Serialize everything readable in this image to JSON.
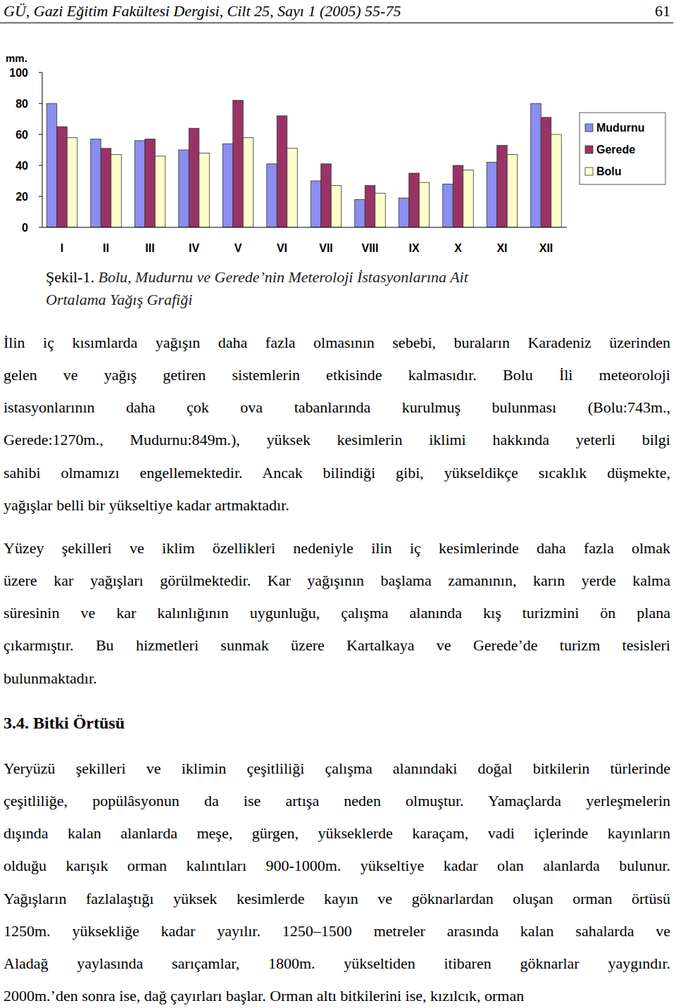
{
  "header": {
    "title": "GÜ, Gazi Eğitim Fakültesi Dergisi, Cilt 25, Sayı 1 (2005) 55-75",
    "page": "61"
  },
  "chart_data": {
    "type": "bar",
    "y_label": "mm.",
    "categories": [
      "I",
      "II",
      "III",
      "IV",
      "V",
      "VI",
      "VII",
      "VIII",
      "IX",
      "X",
      "XI",
      "XII"
    ],
    "series": [
      {
        "name": "Mudurnu",
        "color": "#8a8ef0",
        "values": [
          80,
          57,
          56,
          50,
          54,
          41,
          30,
          18,
          19,
          28,
          42,
          80
        ]
      },
      {
        "name": "Gerede",
        "color": "#993366",
        "values": [
          65,
          51,
          57,
          64,
          82,
          72,
          41,
          27,
          35,
          40,
          53,
          71
        ]
      },
      {
        "name": "Bolu",
        "color": "#ffffcc",
        "values": [
          58,
          47,
          46,
          48,
          58,
          51,
          27,
          22,
          29,
          37,
          47,
          60
        ]
      }
    ],
    "ylim": [
      0,
      100
    ],
    "yticks": [
      0,
      20,
      40,
      60,
      80,
      100
    ],
    "grid": false,
    "legend": "right"
  },
  "caption": {
    "label": "Şekil-1.",
    "lines": [
      "Bolu, Mudurnu ve Gerede’nin Meteroloji İstasyonlarına Ait",
      "Ortalama Yağış Grafiği"
    ]
  },
  "body": [
    {
      "type": "paragraph",
      "lines": [
        "İlin iç kısımlarda yağışın daha fazla olmasının sebebi, buraların Karadeniz üzerinden",
        "gelen ve yağış getiren sistemlerin etkisinde kalmasıdır. Bolu İli meteoroloji",
        "istasyonlarının daha çok ova tabanlarında kurulmuş bulunması (Bolu:743m.,",
        "Gerede:1270m., Mudurnu:849m.), yüksek kesimlerin iklimi hakkında yeterli bilgi",
        "sahibi olmamızı engellemektedir. Ancak bilindiği gibi, yükseldikçe sıcaklık düşmekte,",
        "yağışlar belli bir yükseltiye kadar artmaktadır."
      ]
    },
    {
      "type": "paragraph",
      "lines": [
        "Yüzey şekilleri ve iklim özellikleri nedeniyle ilin iç kesimlerinde daha fazla olmak",
        "üzere kar yağışları görülmektedir. Kar yağışının başlama zamanının, karın yerde kalma",
        "süresinin ve kar kalınlığının uygunluğu, çalışma alanında kış turizmini ön plana",
        "çıkarmıştır. Bu hizmetleri sunmak üzere Kartalkaya ve Gerede’de turizm tesisleri",
        "bulunmaktadır."
      ]
    },
    {
      "type": "heading",
      "text": "3.4. Bitki Örtüsü"
    },
    {
      "type": "paragraph",
      "lines": [
        "Yeryüzü şekilleri ve iklimin çeşitliliği çalışma alanındaki doğal bitkilerin türlerinde",
        "çeşitliliğe, popülâsyonun da ise artışa neden olmuştur. Yamaçlarda yerleşmelerin",
        "dışında kalan alanlarda meşe, gürgen, yükseklerde karaçam, vadi içlerinde kayınların",
        "olduğu karışık orman kalıntıları 900-1000m. yükseltiye kadar olan alanlarda bulunur.",
        "Yağışların fazlalaştığı yüksek kesimlerde kayın ve göknarlardan oluşan orman örtüsü",
        "1250m. yüksekliğe kadar yayılır. 1250–1500 metreler arasında kalan sahalarda ve",
        "Aladağ yaylasında sarıçamlar, 1800m. yükseltiden itibaren göknarlar yaygındır.",
        "2000m.’den sonra ise, dağ çayırları başlar. Orman altı bitkilerini ise, kızılcık, orman"
      ]
    }
  ]
}
